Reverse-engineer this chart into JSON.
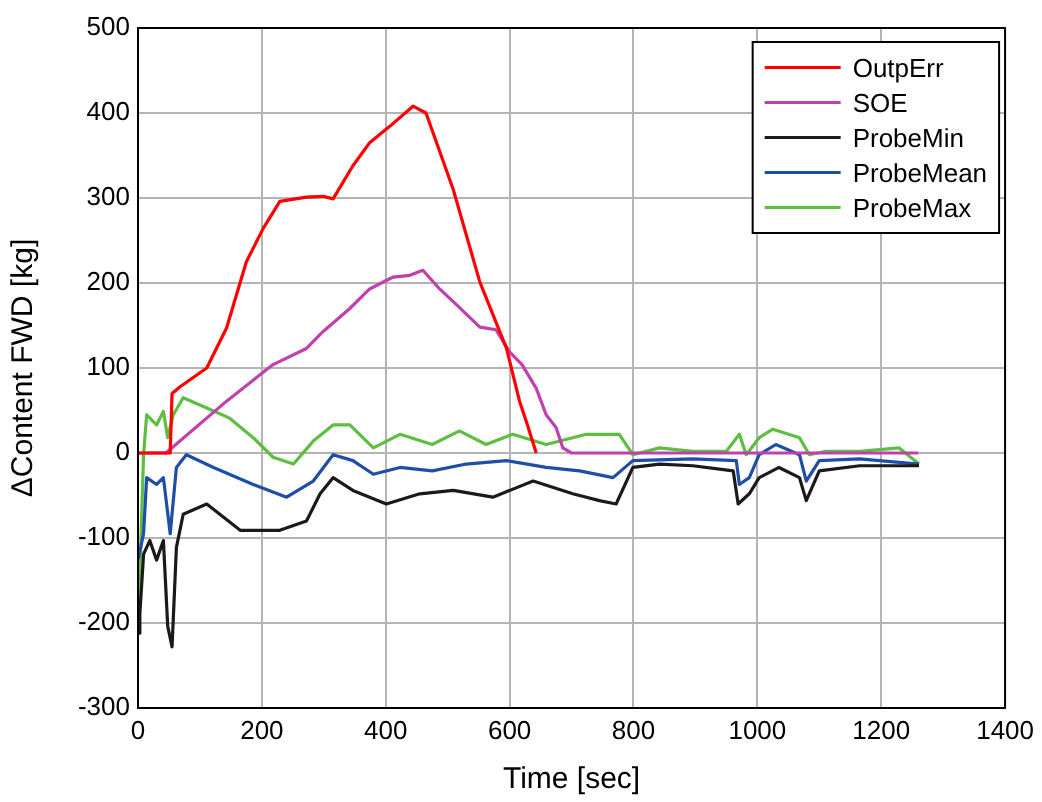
{
  "chart_data": {
    "type": "line",
    "xlabel": "Time [sec]",
    "ylabel": "ΔContent FWD [kg]",
    "xlim": [
      0,
      1400
    ],
    "xticks": [
      0,
      200,
      400,
      600,
      800,
      1000,
      1200,
      1400
    ],
    "ylim": [
      -300,
      500
    ],
    "yticks": [
      -300,
      -200,
      -100,
      0,
      100,
      200,
      300,
      400,
      500
    ],
    "grid": true,
    "legend": "top right",
    "marker": "none",
    "line_style": "solid",
    "series": [
      {
        "name": "OutpErr",
        "color": "#ff0000",
        "x": [
          0,
          52,
          55,
          68,
          111,
          143,
          175,
          202,
          229,
          272,
          299,
          315,
          347,
          374,
          406,
          444,
          465,
          509,
          552,
          595,
          616,
          627,
          643
        ],
        "values": [
          0,
          0,
          70,
          78,
          100,
          147,
          225,
          264,
          296,
          301,
          302,
          299,
          338,
          365,
          384,
          408,
          400,
          310,
          201,
          123,
          61,
          37,
          0
        ]
      },
      {
        "name": "SOE",
        "color": "#c040b0",
        "x": [
          0,
          45,
          143,
          218,
          272,
          299,
          342,
          374,
          412,
          439,
          460,
          487,
          509,
          552,
          578,
          600,
          620,
          643,
          659,
          675,
          686,
          700,
          1260
        ],
        "values": [
          0,
          0,
          61,
          104,
          123,
          143,
          170,
          193,
          207,
          209,
          215,
          193,
          178,
          148,
          145,
          119,
          104,
          76,
          45,
          30,
          6,
          0,
          0
        ]
      },
      {
        "name": "ProbeMin",
        "color": "#1a1a1a",
        "x": [
          0,
          3,
          9,
          19,
          30,
          41,
          48,
          55,
          62,
          73,
          111,
          165,
          229,
          272,
          294,
          315,
          347,
          401,
          455,
          509,
          573,
          638,
          702,
          745,
          772,
          799,
          842,
          896,
          961,
          969,
          987,
          1003,
          1035,
          1068,
          1079,
          1100,
          1165,
          1261
        ],
        "values": [
          -212,
          -189,
          -119,
          -103,
          -126,
          -103,
          -204,
          -228,
          -111,
          -72,
          -60,
          -91,
          -91,
          -80,
          -48,
          -29,
          -44,
          -60,
          -48,
          -44,
          -52,
          -33,
          -48,
          -56,
          -60,
          -17,
          -13,
          -15,
          -21,
          -60,
          -48,
          -29,
          -17,
          -29,
          -56,
          -21,
          -15,
          -15
        ]
      },
      {
        "name": "ProbeMean",
        "color": "#1f4ea8",
        "x": [
          0,
          9,
          14,
          30,
          41,
          52,
          62,
          78,
          122,
          186,
          240,
          283,
          315,
          347,
          380,
          423,
          475,
          530,
          595,
          659,
          713,
          767,
          799,
          896,
          966,
          971,
          987,
          1003,
          1030,
          1068,
          1079,
          1100,
          1165,
          1261
        ],
        "values": [
          -126,
          -95,
          -29,
          -37,
          -29,
          -95,
          -17,
          -2,
          -17,
          -37,
          -52,
          -33,
          -2,
          -9,
          -25,
          -17,
          -21,
          -13,
          -9,
          -17,
          -21,
          -29,
          -9,
          -7,
          -9,
          -37,
          -29,
          -2,
          10,
          -2,
          -33,
          -9,
          -7,
          -13
        ]
      },
      {
        "name": "ProbeMax",
        "color": "#5cbf40",
        "x": [
          1,
          9,
          14,
          30,
          41,
          48,
          57,
          73,
          111,
          148,
          186,
          218,
          251,
          283,
          315,
          342,
          380,
          423,
          475,
          519,
          562,
          605,
          659,
          724,
          777,
          799,
          842,
          896,
          950,
          971,
          982,
          1003,
          1025,
          1068,
          1084,
          1111,
          1165,
          1229,
          1261
        ],
        "values": [
          -189,
          -2,
          45,
          33,
          49,
          18,
          45,
          65,
          53,
          41,
          18,
          -5,
          -13,
          14,
          33,
          33,
          6,
          22,
          10,
          26,
          10,
          22,
          10,
          22,
          22,
          -2,
          6,
          2,
          2,
          22,
          -2,
          18,
          28,
          18,
          -2,
          2,
          2,
          6,
          -13
        ]
      }
    ]
  }
}
